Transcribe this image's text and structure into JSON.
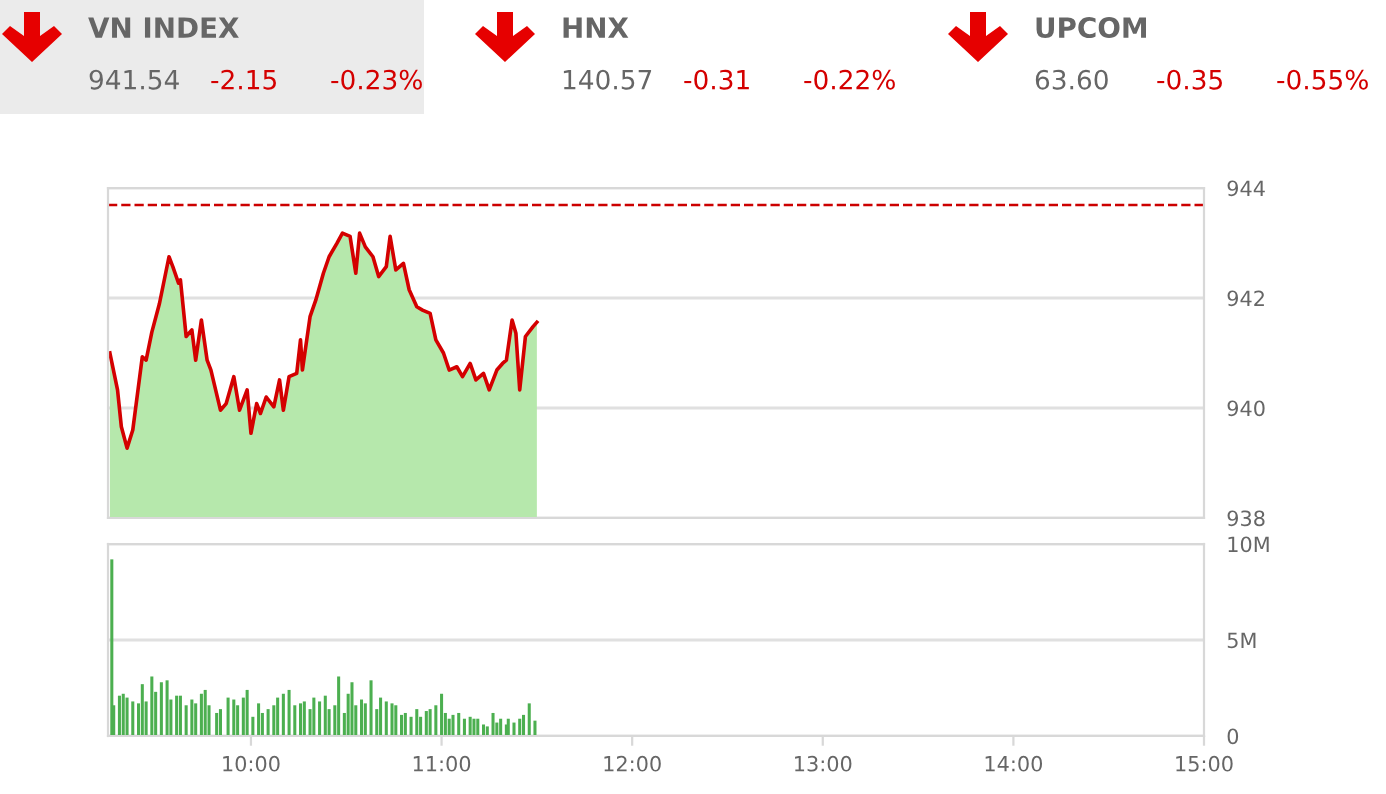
{
  "chart_data": [
    {
      "type": "other",
      "annotations": [
        "VN INDEX",
        "941.54",
        "-2.15",
        "-0.23%",
        "HNX",
        "140.57",
        "-0.31",
        "-0.22%",
        "UPCOM",
        "63.60",
        "-0.35",
        "-0.55%"
      ]
    },
    {
      "type": "area",
      "xlim": [
        9.25,
        15
      ],
      "ylim": [
        938,
        944
      ],
      "yticks": [
        938,
        940,
        942,
        944
      ],
      "grid": "y",
      "tick_labels": "y",
      "series": [
        {
          "type": "area",
          "color": "#b6e8ac",
          "x": [
            9.26,
            9.3,
            9.32,
            9.35,
            9.38,
            9.43,
            9.45,
            9.48,
            9.52,
            9.57,
            9.59,
            9.62,
            9.63,
            9.66,
            9.69,
            9.71,
            9.74,
            9.77,
            9.79,
            9.84,
            9.87,
            9.91,
            9.94,
            9.98,
            10.0,
            10.03,
            10.05,
            10.08,
            10.12,
            10.15,
            10.17,
            10.2,
            10.24,
            10.26,
            10.27,
            10.31,
            10.34,
            10.38,
            10.41,
            10.45,
            10.48,
            10.52,
            10.55,
            10.57,
            10.6,
            10.64,
            10.67,
            10.71,
            10.73,
            10.76,
            10.8,
            10.83,
            10.87,
            10.9,
            10.94,
            10.97,
            11.01,
            11.04,
            11.08,
            11.11,
            11.15,
            11.18,
            11.22,
            11.25,
            11.29,
            11.32,
            11.34,
            11.37,
            11.39,
            11.41,
            11.44,
            11.48,
            11.5
          ],
          "values": [
            941.0,
            940.33,
            939.66,
            939.27,
            939.6,
            940.93,
            940.87,
            941.38,
            941.9,
            942.75,
            942.57,
            942.27,
            942.33,
            941.3,
            941.42,
            940.87,
            941.6,
            940.87,
            940.69,
            939.96,
            940.08,
            940.57,
            939.96,
            940.33,
            939.54,
            940.08,
            939.9,
            940.2,
            940.02,
            940.51,
            939.96,
            940.57,
            940.63,
            941.24,
            940.69,
            941.66,
            941.96,
            942.45,
            942.75,
            942.99,
            943.18,
            943.12,
            942.45,
            943.18,
            942.93,
            942.75,
            942.39,
            942.57,
            943.12,
            942.51,
            942.63,
            942.15,
            941.84,
            941.78,
            941.72,
            941.24,
            941.0,
            940.69,
            940.75,
            940.57,
            940.81,
            940.51,
            940.63,
            940.33,
            940.69,
            940.81,
            940.87,
            941.6,
            941.36,
            940.33,
            941.3,
            941.48,
            941.56
          ]
        },
        {
          "type": "line",
          "color": "#d40000",
          "x": [
            9.26,
            9.3,
            9.32,
            9.35,
            9.38,
            9.43,
            9.45,
            9.48,
            9.52,
            9.57,
            9.59,
            9.62,
            9.63,
            9.66,
            9.69,
            9.71,
            9.74,
            9.77,
            9.79,
            9.84,
            9.87,
            9.91,
            9.94,
            9.98,
            10.0,
            10.03,
            10.05,
            10.08,
            10.12,
            10.15,
            10.17,
            10.2,
            10.24,
            10.26,
            10.27,
            10.31,
            10.34,
            10.38,
            10.41,
            10.45,
            10.48,
            10.52,
            10.55,
            10.57,
            10.6,
            10.64,
            10.67,
            10.71,
            10.73,
            10.76,
            10.8,
            10.83,
            10.87,
            10.9,
            10.94,
            10.97,
            11.01,
            11.04,
            11.08,
            11.11,
            11.15,
            11.18,
            11.22,
            11.25,
            11.29,
            11.32,
            11.34,
            11.37,
            11.39,
            11.41,
            11.44,
            11.48,
            11.5
          ],
          "values": [
            941.0,
            940.33,
            939.66,
            939.27,
            939.6,
            940.93,
            940.87,
            941.38,
            941.9,
            942.75,
            942.57,
            942.27,
            942.33,
            941.3,
            941.42,
            940.87,
            941.6,
            940.87,
            940.69,
            939.96,
            940.08,
            940.57,
            939.96,
            940.33,
            939.54,
            940.08,
            939.9,
            940.2,
            940.02,
            940.51,
            939.96,
            940.57,
            940.63,
            941.24,
            940.69,
            941.66,
            941.96,
            942.45,
            942.75,
            942.99,
            943.18,
            943.12,
            942.45,
            943.18,
            942.93,
            942.75,
            942.39,
            942.57,
            943.12,
            942.51,
            942.63,
            942.15,
            941.84,
            941.78,
            941.72,
            941.24,
            941.0,
            940.69,
            940.75,
            940.57,
            940.81,
            940.51,
            940.63,
            940.33,
            940.69,
            940.81,
            940.87,
            941.6,
            941.36,
            940.33,
            941.3,
            941.48,
            941.56
          ]
        }
      ],
      "ref_lines": [
        {
          "axis": "y",
          "value": 943.69,
          "color": "#cc0000",
          "line_style": "dashed"
        }
      ]
    },
    {
      "type": "bar",
      "xlim": [
        9.25,
        15
      ],
      "ylim": [
        0,
        10
      ],
      "xticks": [
        {
          "value": 10,
          "label": "10:00"
        },
        {
          "value": 11,
          "label": "11:00"
        },
        {
          "value": 12,
          "label": "12:00"
        },
        {
          "value": 13,
          "label": "13:00"
        },
        {
          "value": 14,
          "label": "14:00"
        },
        {
          "value": 15,
          "label": "15:00"
        }
      ],
      "yticks": [
        {
          "value": 0,
          "label": "0"
        },
        {
          "value": 5,
          "label": "5M"
        },
        {
          "value": 10,
          "label": "10M"
        }
      ],
      "grid": "y",
      "series": [
        {
          "color": "#4caf50",
          "x": [
            9.27,
            9.28,
            9.31,
            9.33,
            9.35,
            9.38,
            9.41,
            9.43,
            9.45,
            9.48,
            9.5,
            9.53,
            9.56,
            9.58,
            9.61,
            9.63,
            9.66,
            9.69,
            9.71,
            9.74,
            9.76,
            9.78,
            9.82,
            9.84,
            9.88,
            9.91,
            9.93,
            9.96,
            9.98,
            10.01,
            10.04,
            10.06,
            10.09,
            10.12,
            10.14,
            10.17,
            10.2,
            10.23,
            10.26,
            10.28,
            10.31,
            10.33,
            10.36,
            10.39,
            10.41,
            10.44,
            10.46,
            10.49,
            10.51,
            10.53,
            10.55,
            10.58,
            10.6,
            10.63,
            10.66,
            10.68,
            10.71,
            10.74,
            10.76,
            10.79,
            10.81,
            10.84,
            10.87,
            10.89,
            10.92,
            10.94,
            10.97,
            11.0,
            11.02,
            11.04,
            11.06,
            11.09,
            11.12,
            11.15,
            11.17,
            11.19,
            11.22,
            11.24,
            11.27,
            11.29,
            11.31,
            11.34,
            11.35,
            11.38,
            11.41,
            11.43,
            11.46,
            11.49
          ],
          "values": [
            9.2,
            1.6,
            2.1,
            2.2,
            2.0,
            1.8,
            1.7,
            2.7,
            1.8,
            3.1,
            2.3,
            2.8,
            2.9,
            1.9,
            2.1,
            2.1,
            1.6,
            1.9,
            1.7,
            2.2,
            2.4,
            1.6,
            1.2,
            1.4,
            2.0,
            1.9,
            1.6,
            2.0,
            2.4,
            1.0,
            1.7,
            1.2,
            1.4,
            1.6,
            2.0,
            2.2,
            2.4,
            1.6,
            1.7,
            1.8,
            1.4,
            2.0,
            1.8,
            2.1,
            1.4,
            1.6,
            3.1,
            1.2,
            2.2,
            2.8,
            1.6,
            1.9,
            1.7,
            2.9,
            1.4,
            2.0,
            1.8,
            1.7,
            1.6,
            1.1,
            1.2,
            1.0,
            1.4,
            1.0,
            1.3,
            1.4,
            1.6,
            2.2,
            1.2,
            0.9,
            1.1,
            1.2,
            0.9,
            1.0,
            0.9,
            0.9,
            0.6,
            0.5,
            1.2,
            0.7,
            0.9,
            0.6,
            0.9,
            0.7,
            0.9,
            1.1,
            1.7,
            0.8
          ]
        }
      ]
    }
  ]
}
